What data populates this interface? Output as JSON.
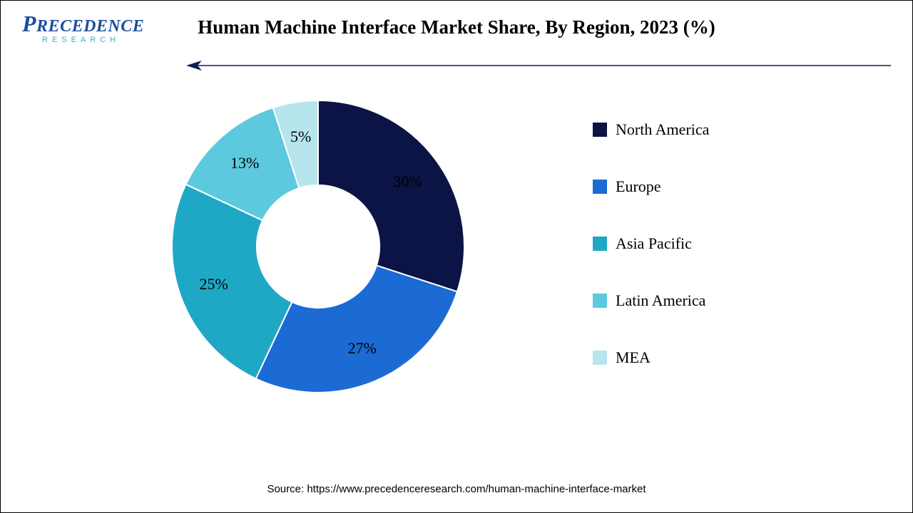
{
  "logo": {
    "line1_cap": "P",
    "line1_rest": "RECEDENCE",
    "line2": "RESEARCH",
    "cap_color": "#1c4e9e",
    "text_color": "#1c4e9e",
    "sub_color": "#27b9c9"
  },
  "title": "Human Machine Interface Market Share, By Region, 2023 (%)",
  "title_fontsize": 27,
  "arrow": {
    "color": "#0b1e55",
    "line_width": 1.5
  },
  "chart": {
    "type": "donut",
    "inner_radius_ratio": 0.42,
    "outer_radius": 205,
    "start_angle_deg": 0,
    "background_color": "#ffffff",
    "label_fontsize": 22,
    "label_color": "#000000",
    "slices": [
      {
        "label": "North America",
        "value": 30,
        "pct_text": "30%",
        "color": "#0b1444"
      },
      {
        "label": "Europe",
        "value": 27,
        "pct_text": "27%",
        "color": "#1c6ad4"
      },
      {
        "label": "Asia Pacific",
        "value": 25,
        "pct_text": "25%",
        "color": "#1ea8c6"
      },
      {
        "label": "Latin America",
        "value": 13,
        "pct_text": "13%",
        "color": "#5cc9de"
      },
      {
        "label": "MEA",
        "value": 5,
        "pct_text": "5%",
        "color": "#b7e5ee"
      }
    ]
  },
  "legend": {
    "item_fontsize": 22,
    "swatch_size": 20,
    "gap": 54
  },
  "source": {
    "prefix": "Source: ",
    "url": "https://www.precedenceresearch.com/human-machine-interface-market",
    "fontsize": 15
  }
}
